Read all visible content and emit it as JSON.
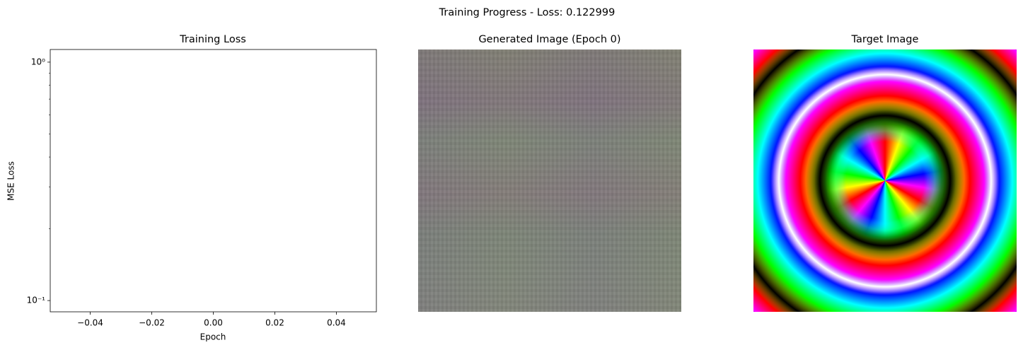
{
  "figure_title": "Training Progress - Loss: 0.122999",
  "chart_data": [
    {
      "type": "line",
      "title": "Training Loss",
      "xlabel": "Epoch",
      "ylabel": "MSE Loss",
      "log_y": true,
      "x": [
        0
      ],
      "series": [
        {
          "name": "loss",
          "color": "#1f77b4",
          "values": [
            0.122999
          ]
        }
      ],
      "xlim": [
        -0.053,
        0.053
      ],
      "xticks": [
        {
          "value": -0.04,
          "label": "−0.04"
        },
        {
          "value": -0.02,
          "label": "−0.02"
        },
        {
          "value": 0,
          "label": "0.00"
        },
        {
          "value": 0.02,
          "label": "0.02"
        },
        {
          "value": 0.04,
          "label": "0.04"
        }
      ],
      "ylim": [
        0.0897,
        1.13
      ],
      "yticks": [
        {
          "value": 0.1,
          "label": "10⁻¹"
        },
        {
          "value": 1,
          "label": "10⁰"
        }
      ],
      "yminorticks": [
        0.2,
        0.3,
        0.4,
        0.5,
        0.6,
        0.7,
        0.8,
        0.9
      ]
    },
    {
      "type": "image",
      "title": "Generated Image (Epoch 0)"
    },
    {
      "type": "image",
      "title": "Target Image"
    }
  ]
}
